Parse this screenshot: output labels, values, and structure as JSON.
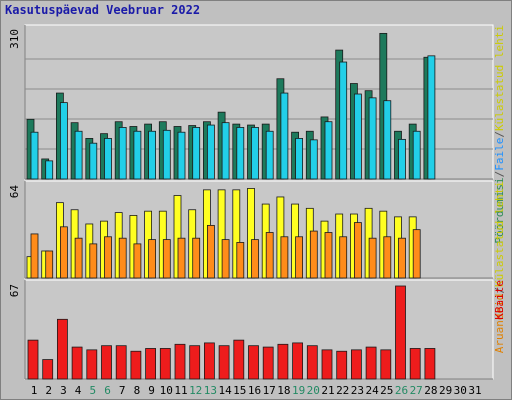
{
  "title": "Kasutuspäevad Veebruar 2022",
  "chart_data": [
    {
      "type": "bar",
      "panel": "top",
      "ymax_label": "310",
      "ylim": [
        0,
        310
      ],
      "legend": [
        {
          "text": "Pöördumisi",
          "color": "#2e8b57"
        },
        {
          "text": "/",
          "color": "#555555"
        },
        {
          "text": "Faile",
          "color": "#1e90ff"
        },
        {
          "text": "/",
          "color": "#555555"
        },
        {
          "text": "Külastatud lehti",
          "color": "#cccc00"
        }
      ],
      "series": [
        {
          "name": "Pöördumisi",
          "color": "#1d7a5c",
          "values": [
            125,
            42,
            180,
            118,
            85,
            95,
            120,
            110,
            115,
            120,
            110,
            112,
            120,
            140,
            115,
            113,
            115,
            210,
            98,
            100,
            130,
            270,
            200,
            185,
            305,
            100,
            115,
            255,
            0,
            0,
            0
          ]
        },
        {
          "name": "Faile",
          "color": "#22cfe8",
          "values": [
            98,
            38,
            160,
            100,
            75,
            85,
            108,
            100,
            100,
            102,
            98,
            108,
            113,
            118,
            108,
            108,
            100,
            180,
            85,
            82,
            120,
            245,
            178,
            170,
            164,
            83,
            100,
            258,
            0,
            0,
            0
          ]
        }
      ]
    },
    {
      "type": "bar",
      "panel": "middle",
      "ymax_label": "64",
      "ylim": [
        0,
        64
      ],
      "legend": [
        {
          "text": "Aruandeid",
          "color": "#e08000"
        },
        {
          "text": "/",
          "color": "#555555"
        },
        {
          "text": "Külastatud lehti",
          "color": "#cccc00"
        }
      ],
      "series": [
        {
          "name": "Külastatud lehti",
          "color": "#ffff22",
          "values": [
            15,
            19,
            53,
            48,
            38,
            40,
            46,
            44,
            47,
            47,
            58,
            48,
            62,
            62,
            62,
            63,
            52,
            57,
            52,
            49,
            40,
            45,
            45,
            49,
            47,
            43,
            43,
            0,
            0,
            0,
            0
          ]
        },
        {
          "name": "Aruandeid",
          "color": "#ff8c1a",
          "values": [
            31,
            19,
            36,
            28,
            24,
            29,
            28,
            24,
            27,
            27,
            28,
            28,
            37,
            27,
            25,
            27,
            32,
            29,
            29,
            33,
            32,
            29,
            39,
            28,
            29,
            28,
            34,
            0,
            0,
            0,
            0
          ]
        }
      ]
    },
    {
      "type": "bar",
      "panel": "bottom",
      "ymax_label": "67",
      "ylim": [
        0,
        67
      ],
      "legend": [
        {
          "text": "KBaite",
          "color": "#dd0000"
        }
      ],
      "series": [
        {
          "name": "KBaite",
          "color": "#ee1c1c",
          "values": [
            28,
            14,
            43,
            23,
            21,
            24,
            24,
            20,
            22,
            22,
            25,
            24,
            26,
            24,
            28,
            24,
            23,
            25,
            26,
            24,
            21,
            20,
            21,
            23,
            21,
            67,
            22,
            22,
            0,
            0,
            0
          ]
        }
      ]
    }
  ],
  "x_days": [
    "1",
    "2",
    "3",
    "4",
    "5",
    "6",
    "7",
    "8",
    "9",
    "10",
    "11",
    "12",
    "13",
    "14",
    "15",
    "16",
    "17",
    "18",
    "19",
    "20",
    "21",
    "22",
    "23",
    "24",
    "25",
    "26",
    "27",
    "28",
    "29",
    "30",
    "31"
  ],
  "weekend_days": [
    5,
    6,
    12,
    13,
    19,
    20,
    26,
    27
  ],
  "day_label_color": "#000000",
  "weekend_label_color": "#238a64"
}
